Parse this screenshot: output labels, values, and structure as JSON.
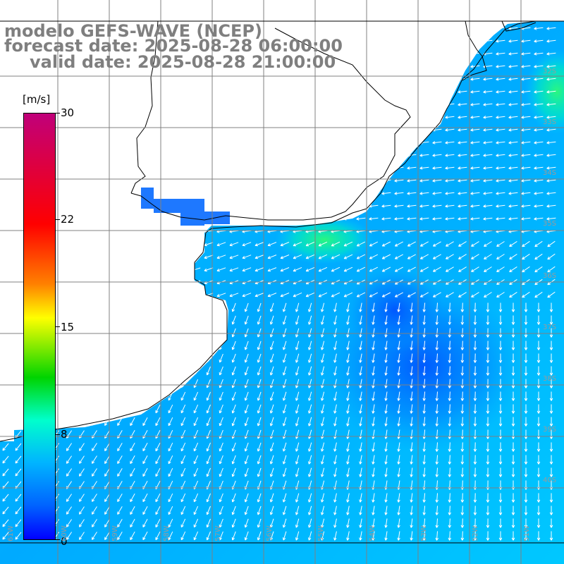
{
  "title": {
    "line1": "modelo GEFS-WAVE (NCEP)",
    "line2": "forecast date: 2025-08-28 06:00:00",
    "line3": "valid date: 2025-08-28 21:00:00"
  },
  "colorbar": {
    "unit": "[m/s]",
    "ticks": [
      "30",
      "22",
      "15",
      "8",
      "0"
    ]
  },
  "lat_labels": [
    "32S",
    "33S",
    "34S",
    "35S",
    "36S",
    "37S",
    "38S",
    "39S",
    "40S"
  ],
  "lon_labels": [
    "61W",
    "60W",
    "59W",
    "58W",
    "57W",
    "56W",
    "55W",
    "54W",
    "53W",
    "52W",
    "51W"
  ],
  "colors": {
    "background": "#ffffff",
    "land_outline": "#000000",
    "grid": "#808080",
    "arrows": "#ffffff",
    "title": "#7f7f7f"
  }
}
